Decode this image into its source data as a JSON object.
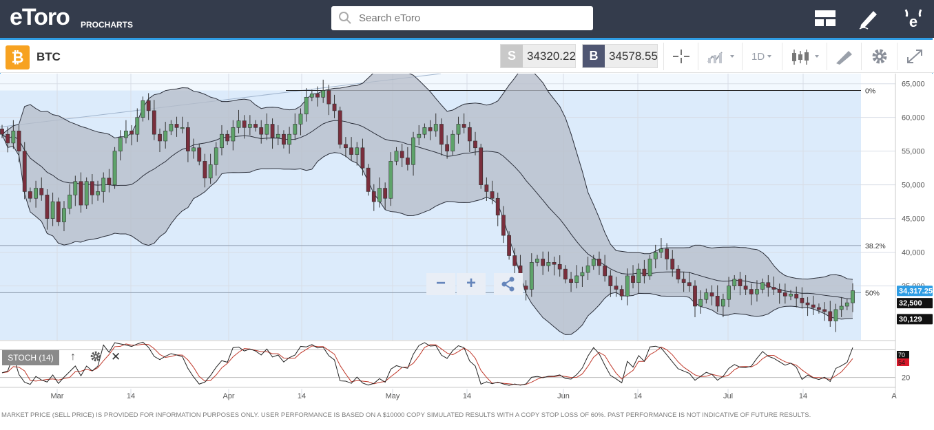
{
  "header": {
    "logo": "eToro",
    "logo_sub": "PROCHARTS",
    "search_placeholder": "Search eToro",
    "icons": [
      "layout-icon",
      "pencil-icon",
      "etoro-e-icon"
    ]
  },
  "toolbar": {
    "symbol": "BTC",
    "icon": "bitcoin-icon",
    "sell_letter": "S",
    "sell_price": "34320.22",
    "buy_letter": "B",
    "buy_price": "34578.55",
    "timeframe": "1D",
    "buttons": [
      "crosshair-icon",
      "chart-type-icon",
      "timeframe-dropdown",
      "candles-icon",
      "drawing-icon",
      "settings-icon",
      "fullscreen-icon"
    ]
  },
  "colors": {
    "topbar": "#343c4c",
    "accent": "#2f9de4",
    "bull": "#5ea36a",
    "bear": "#7a2e3c",
    "band_fill": "#b5bcc8",
    "fib_zone": "#dcebfb",
    "stoch_k": "#222222",
    "stoch_d": "#c0392b"
  },
  "chart_data": {
    "type": "candlestick",
    "symbol": "BTC",
    "x_axis_labels": [
      "Mar",
      "14",
      "Apr",
      "14",
      "May",
      "14",
      "Jun",
      "14",
      "Jul",
      "14",
      "A"
    ],
    "y_axis_labels": [
      "65,000",
      "60,000",
      "55,000",
      "50,000",
      "45,000",
      "40,000",
      "35,000"
    ],
    "ylim": [
      27000,
      66500
    ],
    "fibonacci": [
      {
        "label": "0%",
        "value": 64000
      },
      {
        "label": "38.2%",
        "value": 41000
      },
      {
        "label": "50%",
        "value": 34000
      }
    ],
    "price_tags": [
      {
        "label": "34,317.25",
        "value": 34317,
        "color": "#2f9de4"
      },
      {
        "label": "32,500",
        "value": 32500,
        "color": "#111111"
      },
      {
        "label": "30,129",
        "value": 30129,
        "color": "#111111"
      }
    ],
    "candles_close": [
      57500,
      56200,
      58000,
      55000,
      49000,
      48000,
      49500,
      48500,
      45000,
      47500,
      44500,
      46500,
      48500,
      50500,
      47000,
      50500,
      48500,
      49000,
      51000,
      50000,
      55000,
      57000,
      58000,
      57500,
      60000,
      62500,
      61000,
      57500,
      56500,
      58000,
      59000,
      58500,
      58500,
      55000,
      55500,
      53500,
      51000,
      53000,
      55500,
      57500,
      56500,
      58500,
      59500,
      58500,
      59000,
      58500,
      57500,
      59000,
      57000,
      57500,
      56000,
      57500,
      59000,
      60500,
      63000,
      63500,
      63000,
      64000,
      62000,
      61000,
      56000,
      55500,
      54500,
      55500,
      52500,
      49000,
      47500,
      49500,
      48000,
      53500,
      55000,
      54000,
      53000,
      57000,
      57500,
      58500,
      58000,
      59000,
      56000,
      55000,
      57500,
      59000,
      58500,
      56500,
      55500,
      50000,
      49000,
      48000,
      45500,
      42500,
      39500,
      38000,
      35000,
      34500,
      38500,
      39000,
      38000,
      38500,
      38200,
      37500,
      36000,
      35500,
      36500,
      37000,
      38000,
      39000,
      38000,
      36500,
      35000,
      34500,
      33500,
      36500,
      35500,
      37500,
      36500,
      39000,
      40000,
      40500,
      39000,
      37500,
      36000,
      35500,
      35000,
      32000,
      33000,
      34000,
      33500,
      32000,
      33000,
      35000,
      36000,
      35000,
      34500,
      33800,
      34500,
      35500,
      34800,
      34500,
      34000,
      33500,
      33800,
      33200,
      32500,
      32200,
      31800,
      31500,
      31200,
      29800,
      31500,
      32000,
      32500,
      34300
    ],
    "series": [
      {
        "name": "Bollinger Upper"
      },
      {
        "name": "Bollinger Middle"
      },
      {
        "name": "Bollinger Lower"
      }
    ],
    "indicator": {
      "name": "STOCH",
      "label": "STOCH (14)",
      "levels": [
        "70",
        "20"
      ],
      "k_tag": "70",
      "d_tag": "54"
    }
  },
  "zoom_controls": {
    "minus": "−",
    "plus": "+",
    "share_icon": "share-icon"
  },
  "stoch_controls": {
    "up_glyph": "↑",
    "close_glyph": "✕"
  },
  "disclaimer": "MARKET PRICE (SELL PRICE) IS PROVIDED FOR INFORMATION PURPOSES ONLY. USER PERFORMANCE IS BASED ON A $10000 COPY SIMULATED RESULTS WITH A COPY STOP LOSS OF 60%. PAST PERFORMANCE IS NOT INDICATIVE OF FUTURE RESULTS."
}
